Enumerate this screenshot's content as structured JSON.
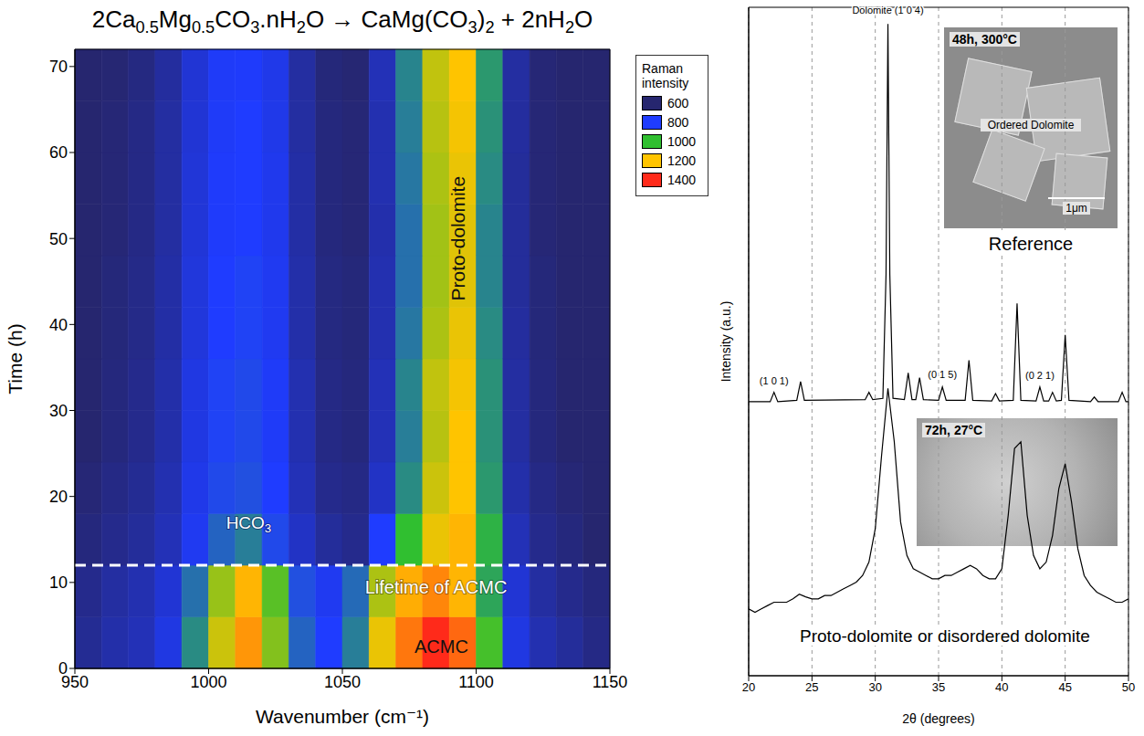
{
  "chart_data": [
    {
      "type": "heatmap",
      "title": "2Ca0.5Mg0.5CO3.nH2O → CaMg(CO3)2 + 2nH2O",
      "x_label": "Wavenumber (cm⁻¹)",
      "y_label": "Time (h)",
      "xlim": [
        950,
        1150
      ],
      "xticks": [
        950,
        1000,
        1050,
        1100,
        1150
      ],
      "ylim": [
        0,
        72
      ],
      "yticks": [
        0,
        10,
        20,
        30,
        40,
        50,
        60,
        70
      ],
      "x_edges": [
        950,
        960,
        970,
        980,
        990,
        1000,
        1010,
        1020,
        1030,
        1040,
        1050,
        1060,
        1070,
        1080,
        1090,
        1100,
        1110,
        1120,
        1130,
        1140,
        1150
      ],
      "y_edges": [
        0,
        6,
        12,
        18,
        24,
        30,
        36,
        42,
        48,
        54,
        60,
        66,
        72
      ],
      "z": [
        [
          650,
          680,
          700,
          760,
          920,
          1150,
          1260,
          1080,
          860,
          800,
          900,
          1180,
          1300,
          1420,
          1320,
          1020,
          760,
          690,
          660,
          630
        ],
        [
          640,
          670,
          690,
          740,
          880,
          1100,
          1220,
          1040,
          830,
          780,
          870,
          1120,
          1230,
          1280,
          1220,
          960,
          740,
          670,
          640,
          620
        ],
        [
          620,
          640,
          660,
          700,
          780,
          860,
          900,
          820,
          720,
          660,
          640,
          800,
          1000,
          1180,
          1220,
          980,
          700,
          640,
          620,
          600
        ],
        [
          610,
          630,
          650,
          690,
          770,
          820,
          830,
          800,
          700,
          640,
          630,
          720,
          920,
          1150,
          1200,
          940,
          680,
          630,
          610,
          600
        ],
        [
          600,
          620,
          640,
          680,
          760,
          810,
          820,
          790,
          690,
          630,
          620,
          700,
          900,
          1130,
          1200,
          930,
          670,
          620,
          600,
          590
        ],
        [
          600,
          620,
          640,
          680,
          760,
          810,
          820,
          790,
          690,
          630,
          620,
          700,
          910,
          1140,
          1190,
          930,
          670,
          620,
          600,
          590
        ],
        [
          600,
          615,
          635,
          675,
          750,
          800,
          810,
          780,
          680,
          625,
          615,
          690,
          890,
          1120,
          1180,
          920,
          665,
          615,
          600,
          590
        ],
        [
          600,
          615,
          635,
          675,
          750,
          800,
          810,
          780,
          680,
          625,
          615,
          690,
          880,
          1110,
          1170,
          910,
          660,
          615,
          600,
          590
        ],
        [
          595,
          610,
          630,
          670,
          745,
          795,
          800,
          775,
          675,
          620,
          610,
          685,
          880,
          1110,
          1170,
          910,
          660,
          610,
          595,
          585
        ],
        [
          595,
          610,
          630,
          670,
          745,
          795,
          800,
          775,
          675,
          620,
          610,
          690,
          890,
          1120,
          1180,
          920,
          660,
          610,
          595,
          585
        ],
        [
          595,
          610,
          630,
          670,
          740,
          790,
          800,
          770,
          670,
          620,
          610,
          690,
          900,
          1130,
          1190,
          930,
          665,
          610,
          595,
          585
        ],
        [
          590,
          605,
          625,
          665,
          740,
          790,
          795,
          770,
          670,
          615,
          605,
          700,
          910,
          1140,
          1200,
          940,
          670,
          610,
          590,
          585
        ]
      ],
      "colorbar": {
        "title": "Raman intensity",
        "levels": [
          600,
          800,
          1000,
          1200,
          1400
        ],
        "colors": [
          "#26266f",
          "#1f3cff",
          "#30bf30",
          "#ffc400",
          "#ff2a1a"
        ]
      },
      "legend": "right",
      "reference_lines": [
        {
          "y": 12,
          "line_style": "dashed",
          "color": "#ffffff"
        }
      ],
      "annotations": [
        {
          "text": "HCO3",
          "x": 1015,
          "y": 17
        },
        {
          "text": "Lifetime of ACMC",
          "x": 1085,
          "y": 9.5
        },
        {
          "text": "ACMC",
          "x": 1087,
          "y": 2.5
        },
        {
          "text": "Proto-dolomite",
          "x": 1093,
          "y": 50
        }
      ]
    },
    {
      "type": "line",
      "x_label": "2θ (degrees)",
      "y_label": "Intensity (a.u.)",
      "xlim": [
        20,
        50
      ],
      "xticks": [
        20,
        25,
        30,
        35,
        40,
        45,
        50
      ],
      "ylim": [
        0,
        100
      ],
      "tick_labels": "x",
      "grid": true,
      "series": [
        {
          "name": "Reference",
          "color": "#000000",
          "x": [
            20,
            21.7,
            22,
            22.3,
            23.8,
            24.1,
            24.4,
            29.2,
            29.5,
            29.8,
            30.6,
            30.85,
            31,
            31.15,
            31.4,
            32.3,
            32.6,
            32.9,
            33.2,
            33.5,
            33.8,
            35,
            35.3,
            35.6,
            37.1,
            37.4,
            37.7,
            39.2,
            39.5,
            39.8,
            40.9,
            41.2,
            41.5,
            42.7,
            43,
            43.3,
            43.7,
            44,
            44.3,
            44.7,
            45,
            45.3,
            47,
            47.3,
            47.6,
            49.2,
            49.5,
            49.8,
            50
          ],
          "values": [
            41,
            41,
            42.4,
            41,
            41.2,
            44,
            41.2,
            41.3,
            42.4,
            41.3,
            41.5,
            60,
            97.5,
            60,
            41.5,
            41.3,
            45.3,
            41.3,
            41.3,
            44.6,
            41.3,
            41.2,
            43.2,
            41.2,
            41.2,
            47.2,
            41.2,
            41.1,
            42.2,
            41.1,
            41.2,
            55.7,
            41.2,
            41.1,
            43.2,
            41.1,
            41.1,
            42.4,
            41.1,
            41.2,
            51,
            41.2,
            41,
            41.7,
            41,
            41,
            42.4,
            41,
            41
          ],
          "inset": {
            "caption": "48h, 300°C",
            "labels": [
              "Ordered Dolomite",
              "1μm"
            ]
          }
        },
        {
          "name": "Proto-dolomite or disordered dolomite",
          "color": "#000000",
          "x": [
            20,
            20.5,
            21,
            21.5,
            22,
            22.5,
            23,
            23.5,
            24,
            24.5,
            25,
            25.5,
            26,
            26.5,
            27,
            27.5,
            28,
            28.5,
            29,
            29.5,
            30,
            30.5,
            31,
            31.5,
            32,
            32.5,
            33,
            33.5,
            34,
            34.5,
            35,
            35.5,
            36,
            36.5,
            37,
            37.5,
            38,
            38.5,
            39,
            39.5,
            40,
            40.5,
            41,
            41.5,
            42,
            42.5,
            43,
            43.5,
            44,
            44.5,
            45,
            45.5,
            46,
            46.5,
            47,
            47.5,
            48,
            48.5,
            49,
            49.5,
            50
          ],
          "values": [
            10,
            9.5,
            10,
            10.5,
            11,
            11,
            11,
            11.5,
            12.2,
            11.8,
            11.5,
            11.5,
            12,
            12,
            12.5,
            13,
            13.5,
            14,
            15,
            17,
            22,
            33,
            43,
            35,
            23,
            18,
            16,
            15.5,
            15,
            14.5,
            14.5,
            15,
            15,
            15.5,
            16,
            16.5,
            16,
            15,
            14.5,
            14.5,
            16,
            24,
            34,
            35,
            24,
            18,
            16,
            17,
            21,
            28,
            31.7,
            26,
            19,
            15,
            13.5,
            12.5,
            12,
            11.5,
            11,
            11,
            11.5
          ],
          "inset": {
            "caption": "72h, 27°C",
            "labels": []
          }
        }
      ],
      "annotations": [
        {
          "text": "Dolomite (1 0 4)",
          "x": 31,
          "y": 99.6
        },
        {
          "text": "(1 0 1)",
          "x": 22,
          "y": 44.1
        },
        {
          "text": "(0 1 5)",
          "x": 35.3,
          "y": 45.1
        },
        {
          "text": "(0 2 1)",
          "x": 43,
          "y": 45
        }
      ]
    }
  ]
}
